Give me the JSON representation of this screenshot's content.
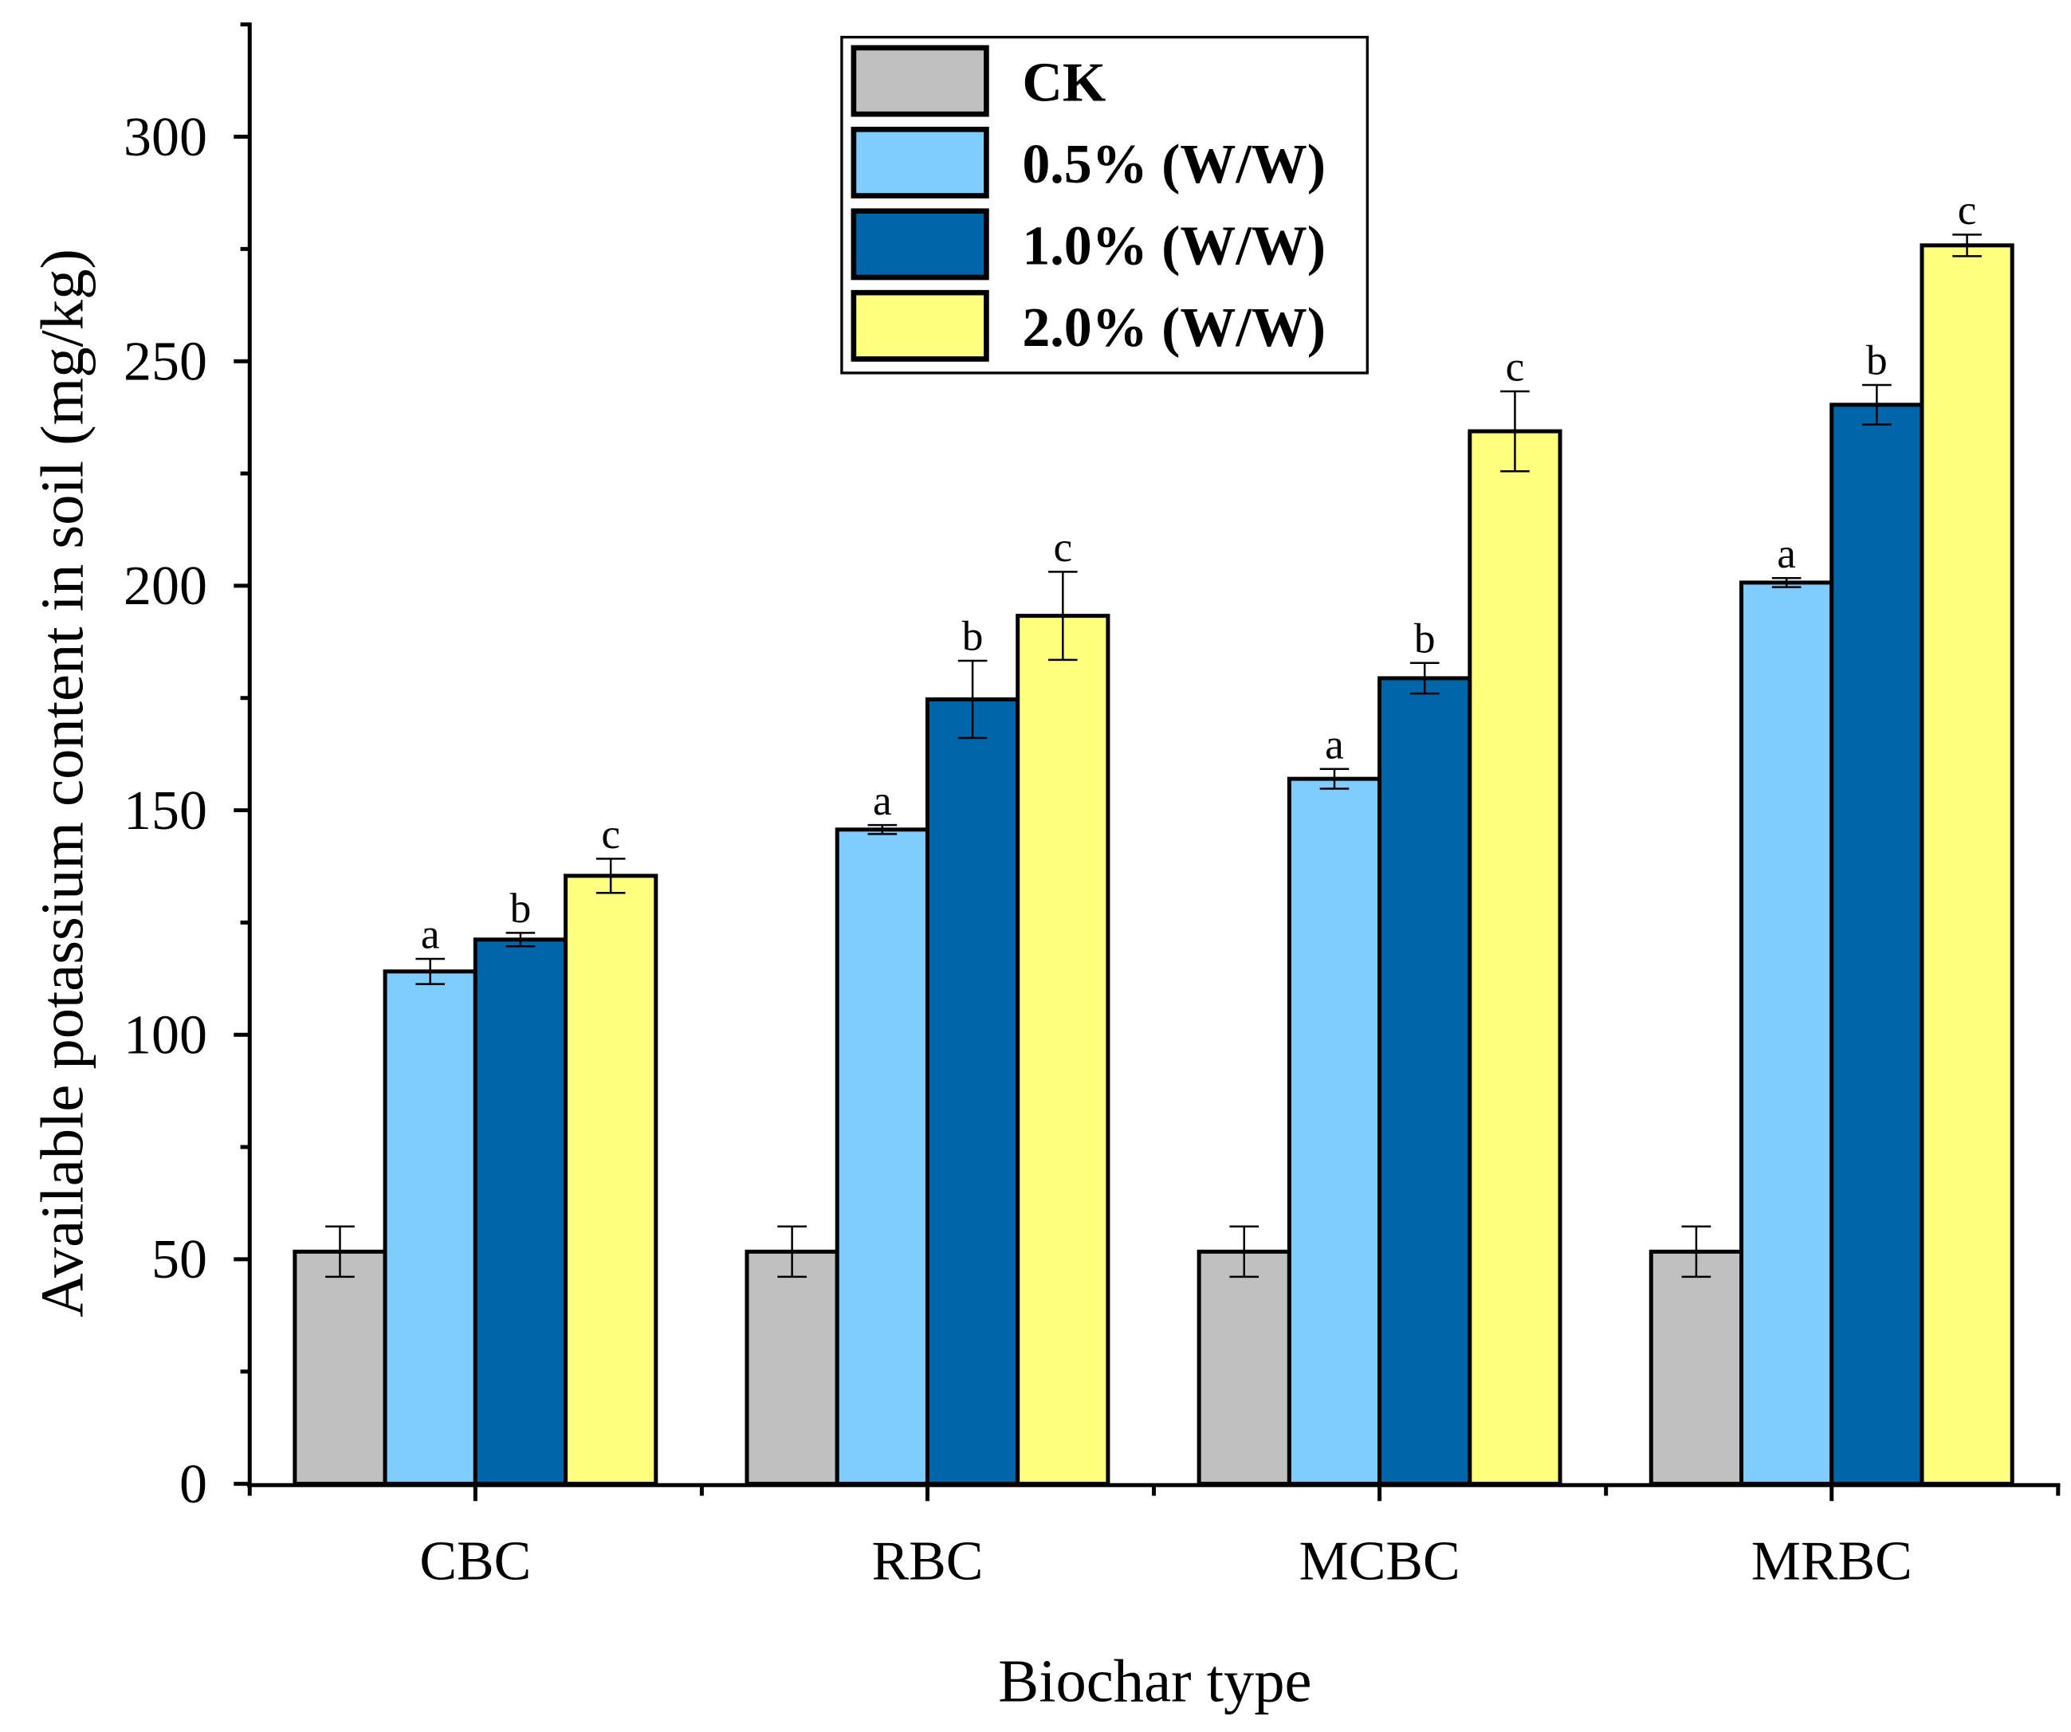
{
  "chart_data": {
    "type": "bar",
    "title": "",
    "xlabel": "Biochar type",
    "ylabel": "Available potassium content in soil (mg/kg)",
    "categories": [
      "CBC",
      "RBC",
      "MCBC",
      "MRBC"
    ],
    "ylim": [
      0,
      325
    ],
    "yticks": [
      0,
      50,
      100,
      150,
      200,
      250,
      300
    ],
    "grid": false,
    "legend_position": "top-center",
    "series": [
      {
        "name": "CK",
        "color": "#C0C0C0",
        "values": [
          51.7,
          51.7,
          51.7,
          51.7
        ],
        "errors": [
          5.6,
          5.6,
          5.6,
          5.6
        ],
        "labels": [
          "",
          "",
          "",
          ""
        ]
      },
      {
        "name": "0.5% (W/W)",
        "color": "#80CCFF",
        "values": [
          114.1,
          145.7,
          157.0,
          200.7
        ],
        "errors": [
          2.8,
          1.0,
          2.2,
          1.0
        ],
        "labels": [
          "a",
          "a",
          "a",
          "a"
        ]
      },
      {
        "name": "1.0% (W/W)",
        "color": "#0066AA",
        "values": [
          121.2,
          174.7,
          179.4,
          240.3
        ],
        "errors": [
          1.5,
          8.6,
          3.4,
          4.4
        ],
        "labels": [
          "b",
          "b",
          "b",
          "b"
        ]
      },
      {
        "name": "2.0% (W/W)",
        "color": "#FFFF80",
        "values": [
          135.4,
          193.3,
          234.4,
          275.8
        ],
        "errors": [
          3.8,
          9.8,
          8.9,
          2.4
        ],
        "labels": [
          "c",
          "c",
          "c",
          "c"
        ]
      }
    ]
  }
}
